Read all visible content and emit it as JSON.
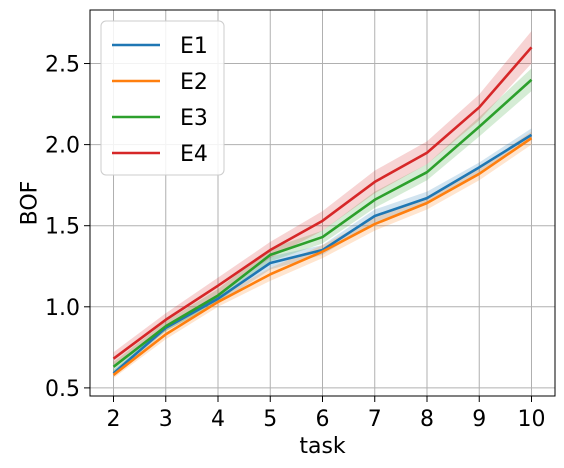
{
  "chart_data": {
    "type": "line",
    "title": "",
    "xlabel": "task",
    "ylabel": "BOF",
    "x": [
      2,
      3,
      4,
      5,
      6,
      7,
      8,
      9,
      10
    ],
    "xlim": [
      1.55,
      10.45
    ],
    "ylim": [
      0.45,
      2.83
    ],
    "xticks": [
      "2",
      "3",
      "4",
      "5",
      "6",
      "7",
      "8",
      "9",
      "10"
    ],
    "yticks": [
      "0.5",
      "1.0",
      "1.5",
      "2.0",
      "2.5"
    ],
    "ytick_values": [
      0.5,
      1.0,
      1.5,
      2.0,
      2.5
    ],
    "grid": true,
    "legend_position": "top-left",
    "series": [
      {
        "name": "E1",
        "color": "#1f77b4",
        "values": [
          0.59,
          0.87,
          1.05,
          1.27,
          1.35,
          1.56,
          1.67,
          1.86,
          2.06
        ],
        "lower": [
          0.57,
          0.85,
          1.02,
          1.23,
          1.32,
          1.52,
          1.63,
          1.83,
          2.03
        ],
        "upper": [
          0.61,
          0.89,
          1.08,
          1.31,
          1.38,
          1.6,
          1.71,
          1.89,
          2.1
        ]
      },
      {
        "name": "E2",
        "color": "#ff7f0e",
        "values": [
          0.58,
          0.83,
          1.03,
          1.2,
          1.34,
          1.51,
          1.64,
          1.82,
          2.04
        ],
        "lower": [
          0.56,
          0.8,
          1.0,
          1.16,
          1.3,
          1.47,
          1.6,
          1.78,
          2.0
        ],
        "upper": [
          0.6,
          0.86,
          1.06,
          1.24,
          1.38,
          1.55,
          1.68,
          1.86,
          2.08
        ]
      },
      {
        "name": "E3",
        "color": "#2ca02c",
        "values": [
          0.63,
          0.88,
          1.07,
          1.32,
          1.43,
          1.66,
          1.83,
          2.11,
          2.4
        ],
        "lower": [
          0.6,
          0.85,
          1.03,
          1.28,
          1.39,
          1.61,
          1.78,
          2.05,
          2.33
        ],
        "upper": [
          0.66,
          0.91,
          1.11,
          1.36,
          1.47,
          1.71,
          1.88,
          2.17,
          2.47
        ]
      },
      {
        "name": "E4",
        "color": "#d62728",
        "values": [
          0.68,
          0.92,
          1.13,
          1.35,
          1.53,
          1.77,
          1.95,
          2.23,
          2.6
        ],
        "lower": [
          0.64,
          0.88,
          1.08,
          1.3,
          1.47,
          1.7,
          1.88,
          2.15,
          2.5
        ],
        "upper": [
          0.72,
          0.96,
          1.18,
          1.4,
          1.59,
          1.84,
          2.02,
          2.31,
          2.7
        ]
      }
    ]
  }
}
